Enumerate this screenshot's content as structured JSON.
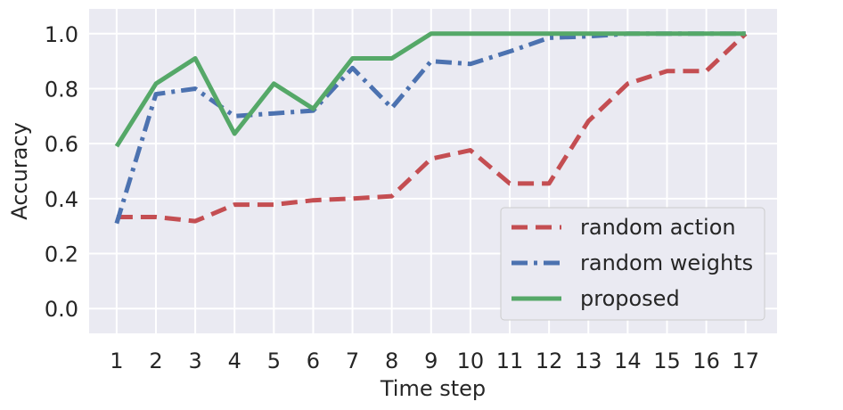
{
  "chart_data": {
    "type": "line",
    "title": "",
    "xlabel": "Time step",
    "ylabel": "Accuracy",
    "x": [
      1,
      2,
      3,
      4,
      5,
      6,
      7,
      8,
      9,
      10,
      11,
      12,
      13,
      14,
      15,
      16,
      17
    ],
    "xticks": [
      "1",
      "2",
      "3",
      "4",
      "5",
      "6",
      "7",
      "8",
      "9",
      "10",
      "11",
      "12",
      "13",
      "14",
      "15",
      "16",
      "17"
    ],
    "yticks": [
      "0.0",
      "0.2",
      "0.4",
      "0.6",
      "0.8",
      "1.0"
    ],
    "ylim": [
      -0.09,
      1.09
    ],
    "xlim": [
      0.3,
      17.8
    ],
    "grid": true,
    "legend_position": "lower-right",
    "colors": {
      "background": "#eaeaf2",
      "grid": "#ffffff"
    },
    "series": [
      {
        "name": "random action",
        "color": "#c44e52",
        "style": "dashed",
        "values": [
          0.333,
          0.333,
          0.318,
          0.378,
          0.378,
          0.394,
          0.4,
          0.409,
          0.545,
          0.576,
          0.455,
          0.455,
          0.682,
          0.818,
          0.864,
          0.864,
          1.0
        ]
      },
      {
        "name": "random weights",
        "color": "#4c72b0",
        "style": "dashdot",
        "values": [
          0.31,
          0.78,
          0.8,
          0.7,
          0.71,
          0.72,
          0.875,
          0.73,
          0.9,
          0.89,
          0.935,
          0.985,
          0.99,
          1.0,
          1.0,
          1.0,
          1.0
        ]
      },
      {
        "name": "proposed",
        "color": "#55a868",
        "style": "solid",
        "values": [
          0.59,
          0.818,
          0.91,
          0.636,
          0.818,
          0.727,
          0.91,
          0.91,
          1.0,
          1.0,
          1.0,
          1.0,
          1.0,
          1.0,
          1.0,
          1.0,
          1.0
        ]
      }
    ]
  }
}
